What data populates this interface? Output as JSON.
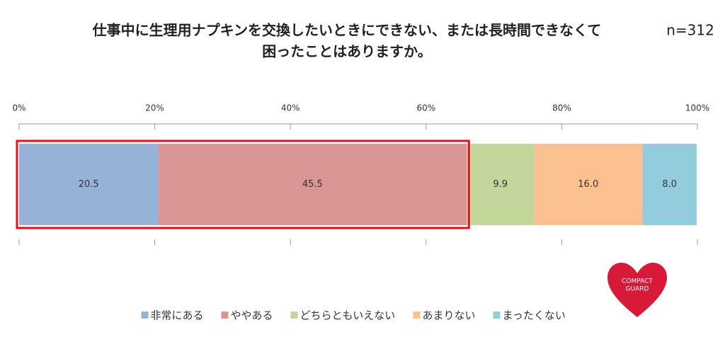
{
  "chart_data": {
    "type": "stacked_bar_100",
    "title": [
      "仕事中に生理用ナプキンを交換したいときにできない、または長時間できなくて",
      "困ったことはありますか。"
    ],
    "annotation": "n=312",
    "series": [
      {
        "name": "非常にある",
        "color": "#95b3d7",
        "values": [
          20.5
        ]
      },
      {
        "name": "ややある",
        "color": "#d99694",
        "values": [
          45.5
        ]
      },
      {
        "name": "どちらともいえない",
        "color": "#c3d69b",
        "values": [
          9.9
        ]
      },
      {
        "name": "あまりない",
        "color": "#fac090",
        "values": [
          16.0
        ],
        "value_labels": [
          "16.0"
        ]
      },
      {
        "name": "まったくない",
        "color": "#93cddd",
        "values": [
          8.0
        ],
        "value_labels": [
          "8.0"
        ]
      }
    ],
    "xlim": [
      0,
      100
    ],
    "xticks": [
      {
        "value": 0,
        "label": "0%"
      },
      {
        "value": 20,
        "label": "20%"
      },
      {
        "value": 40,
        "label": "40%"
      },
      {
        "value": 60,
        "label": "60%"
      },
      {
        "value": 80,
        "label": "80%"
      },
      {
        "value": 100,
        "label": "100%"
      }
    ],
    "highlight_color": "#e3101e",
    "logo_text": [
      "COMPACT",
      "GUARD"
    ]
  }
}
